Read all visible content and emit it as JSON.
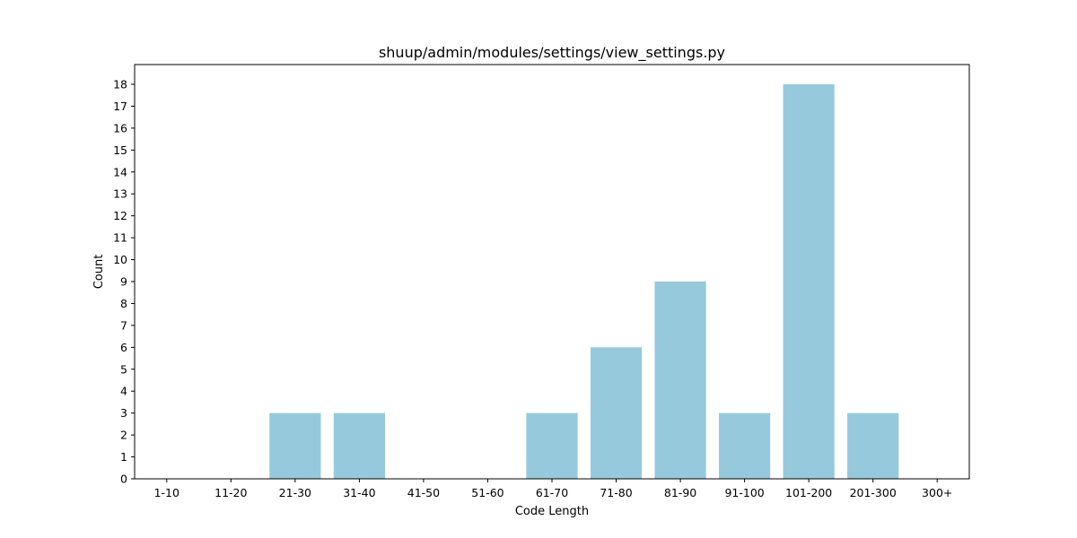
{
  "chart_data": {
    "type": "bar",
    "title": "shuup/admin/modules/settings/view_settings.py",
    "xlabel": "Code Length",
    "ylabel": "Count",
    "categories": [
      "1-10",
      "11-20",
      "21-30",
      "31-40",
      "41-50",
      "51-60",
      "61-70",
      "71-80",
      "81-90",
      "91-100",
      "101-200",
      "201-300",
      "300+"
    ],
    "values": [
      0,
      0,
      3,
      3,
      0,
      0,
      3,
      6,
      9,
      3,
      18,
      3,
      0
    ],
    "ylim": [
      0,
      18.9
    ],
    "yticks": [
      0,
      1,
      2,
      3,
      4,
      5,
      6,
      7,
      8,
      9,
      10,
      11,
      12,
      13,
      14,
      15,
      16,
      17,
      18
    ],
    "grid": false,
    "bar_color": "#96c9dc"
  }
}
